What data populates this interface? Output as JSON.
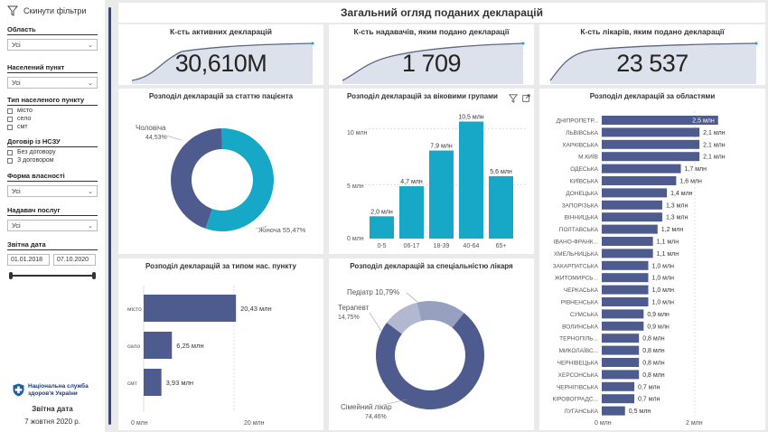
{
  "sidebar": {
    "reset_label": "Скинути фільтри",
    "filters": {
      "region": {
        "label": "Область",
        "value": "Усі"
      },
      "locality": {
        "label": "Населений пункт",
        "value": "Усі"
      },
      "locality_type": {
        "label": "Тип населеного пункту",
        "options": [
          "місто",
          "село",
          "смт"
        ]
      },
      "nszu_contract": {
        "label": "Договір із НСЗУ",
        "options": [
          "Без договору",
          "З договором"
        ]
      },
      "ownership": {
        "label": "Форма власності",
        "value": "Усі"
      },
      "provider": {
        "label": "Надавач послуг",
        "value": "Усі"
      },
      "report_date": {
        "label": "Звітна дата",
        "from": "01.01.2018",
        "to": "07.10.2020"
      }
    },
    "logo": {
      "line1": "Національна служба",
      "line2": "здоров'я України"
    },
    "report_date_label": "Звітна дата",
    "report_date_value": "7 жовтня 2020 р."
  },
  "title": "Загальний огляд поданих декларацій",
  "kpis": [
    {
      "title": "К-сть активних декларацій",
      "value": "30,610M"
    },
    {
      "title": "К-сть надавачів, яким подано декларації",
      "value": "1 709"
    },
    {
      "title": "К-сть лікарів, яким подано декларації",
      "value": "23 537"
    }
  ],
  "colors": {
    "navy": "#4e5b8f",
    "teal": "#17a7c7",
    "light": "#97a1bf",
    "kpi_line": "#5c6780",
    "kpi_fill": "#dde1ec"
  },
  "charts": {
    "gender": {
      "title": "Розподіл декларацій за статтю пацієнта",
      "labels": [
        "Чоловіча",
        "Жіноча"
      ],
      "pct_labels": [
        "44,53%",
        "Жіноча 55,47%"
      ]
    },
    "age": {
      "title": "Розподіл декларацій за віковими групами",
      "yticks": [
        "10 млн",
        "5 млн",
        "0 млн"
      ]
    },
    "settlement": {
      "title": "Розподіл декларацій за типом нас. пункту",
      "xticks": [
        "0 млн",
        "20 млн"
      ]
    },
    "specialty": {
      "title": "Розподіл декларацій за спеціальністю лікаря",
      "labels": [
        "Педіатр 10,79%",
        "Терапевт",
        "14,75%",
        "Сімейний лікар",
        "74,46%"
      ]
    },
    "regions": {
      "title": "Розподіл декларацій за областями",
      "xticks": [
        "0 млн",
        "2 млн"
      ]
    }
  },
  "chart_data": [
    {
      "type": "pie",
      "title": "Розподіл декларацій за статтю пацієнта",
      "categories": [
        "Чоловіча",
        "Жіноча"
      ],
      "values": [
        44.53,
        55.47
      ]
    },
    {
      "type": "bar",
      "title": "Розподіл декларацій за віковими групами",
      "categories": [
        "0-5",
        "06-17",
        "18-39",
        "40-64",
        "65+"
      ],
      "values": [
        2.0,
        4.7,
        7.9,
        10.5,
        5.6
      ],
      "value_labels": [
        "2,0 млн",
        "4,7 млн",
        "7,9 млн",
        "10,5 млн",
        "5,6 млн"
      ],
      "ylim": [
        0,
        12
      ]
    },
    {
      "type": "bar",
      "title": "Розподіл декларацій за типом нас. пункту",
      "categories": [
        "місто",
        "село",
        "смт"
      ],
      "values": [
        20.43,
        6.25,
        3.93
      ],
      "value_labels": [
        "20,43 млн",
        "6,25 млн",
        "3,93 млн"
      ],
      "xlim": [
        0,
        25
      ]
    },
    {
      "type": "pie",
      "title": "Розподіл декларацій за спеціальністю лікаря",
      "categories": [
        "Педіатр",
        "Терапевт",
        "Сімейний лікар"
      ],
      "values": [
        10.79,
        14.75,
        74.46
      ]
    },
    {
      "type": "bar",
      "title": "Розподіл декларацій за областями",
      "categories": [
        "ДНІПРОПЕТР...",
        "ЛЬВІВСЬКА",
        "ХАРКІВСЬКА",
        "М.КИЇВ",
        "ОДЕСЬКА",
        "КИЇВСЬКА",
        "ДОНЕЦЬКА",
        "ЗАПОРІЗЬКА",
        "ВІННИЦЬКА",
        "ПОЛТАВСЬКА",
        "ІВАНО-ФРАНК...",
        "ХМЕЛЬНИЦЬКА",
        "ЗАКАРПАТСЬКА",
        "ЖИТОМИРСЬ...",
        "ЧЕРКАСЬКА",
        "РІВНЕНСЬКА",
        "СУМСЬКА",
        "ВОЛИНСЬКА",
        "ТЕРНОПІЛЬ...",
        "МИКОЛАЇВС...",
        "ЧЕРНІВЕЦЬКА",
        "ХЕРСОНСЬКА",
        "ЧЕРНІГІВСЬКА",
        "КІРОВОГРАДС...",
        "ЛУГАНСЬКА"
      ],
      "values": [
        2.5,
        2.1,
        2.1,
        2.1,
        1.7,
        1.6,
        1.4,
        1.3,
        1.3,
        1.2,
        1.1,
        1.1,
        1.0,
        1.0,
        1.0,
        1.0,
        0.9,
        0.9,
        0.8,
        0.8,
        0.8,
        0.8,
        0.7,
        0.7,
        0.5
      ],
      "value_labels": [
        "2,5 млн",
        "2,1 млн",
        "2,1 млн",
        "2,1 млн",
        "1,7 млн",
        "1,6 млн",
        "1,4 млн",
        "1,3 млн",
        "1,3 млн",
        "1,2 млн",
        "1,1 млн",
        "1,1 млн",
        "1,0 млн",
        "1,0 млн",
        "1,0 млн",
        "1,0 млн",
        "0,9 млн",
        "0,9 млн",
        "0,8 млн",
        "0,8 млн",
        "0,8 млн",
        "0,8 млн",
        "0,7 млн",
        "0,7 млн",
        "0,5 млн"
      ],
      "xlim": [
        0,
        2.9
      ]
    }
  ]
}
